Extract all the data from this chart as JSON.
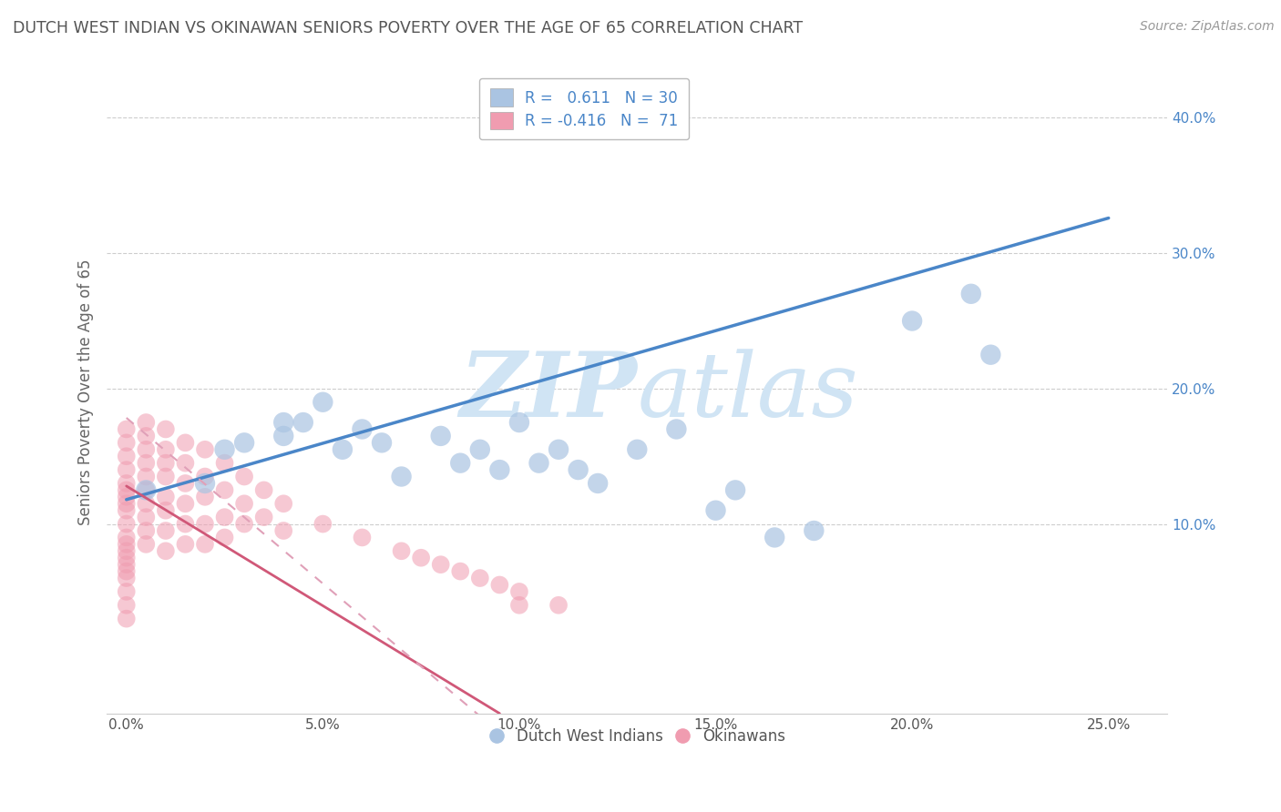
{
  "title": "DUTCH WEST INDIAN VS OKINAWAN SENIORS POVERTY OVER THE AGE OF 65 CORRELATION CHART",
  "source": "Source: ZipAtlas.com",
  "ylabel": "Seniors Poverty Over the Age of 65",
  "x_ticks": [
    0.0,
    0.05,
    0.1,
    0.15,
    0.2,
    0.25
  ],
  "x_tick_labels": [
    "0.0%",
    "5.0%",
    "10.0%",
    "15.0%",
    "20.0%",
    "25.0%"
  ],
  "y_ticks": [
    0.1,
    0.2,
    0.3,
    0.4
  ],
  "y_tick_labels": [
    "10.0%",
    "20.0%",
    "30.0%",
    "40.0%"
  ],
  "xlim": [
    -0.005,
    0.265
  ],
  "ylim": [
    -0.04,
    0.435
  ],
  "legend_label1": "Dutch West Indians",
  "legend_label2": "Okinawans",
  "blue_color": "#aac4e2",
  "pink_color": "#f09cb0",
  "blue_line_color": "#4a86c8",
  "pink_line_color": "#d05878",
  "pink_line_dash_color": "#e0a0b8",
  "watermark_color": "#d0e4f4",
  "background_color": "#ffffff",
  "grid_color": "#c8c8c8",
  "title_color": "#555555",
  "ytick_color": "#4a86c8",
  "xtick_color": "#555555",
  "blue_R": 0.611,
  "blue_N": 30,
  "pink_R": -0.416,
  "pink_N": 71,
  "blue_line_x0": 0.0,
  "blue_line_y0": 0.118,
  "blue_line_x1": 0.25,
  "blue_line_y1": 0.326,
  "pink_line_x0": 0.0,
  "pink_line_y0": 0.128,
  "pink_line_x1": 0.095,
  "pink_line_y1": -0.04,
  "blue_x": [
    0.005,
    0.02,
    0.025,
    0.03,
    0.04,
    0.04,
    0.045,
    0.05,
    0.055,
    0.06,
    0.065,
    0.07,
    0.08,
    0.085,
    0.09,
    0.095,
    0.1,
    0.105,
    0.11,
    0.115,
    0.12,
    0.13,
    0.14,
    0.15,
    0.155,
    0.165,
    0.175,
    0.2,
    0.215,
    0.22
  ],
  "blue_y": [
    0.125,
    0.13,
    0.155,
    0.16,
    0.165,
    0.175,
    0.175,
    0.19,
    0.155,
    0.17,
    0.16,
    0.135,
    0.165,
    0.145,
    0.155,
    0.14,
    0.175,
    0.145,
    0.155,
    0.14,
    0.13,
    0.155,
    0.17,
    0.11,
    0.125,
    0.09,
    0.095,
    0.25,
    0.27,
    0.225
  ],
  "pink_x": [
    0.0,
    0.0,
    0.0,
    0.0,
    0.0,
    0.0,
    0.0,
    0.0,
    0.0,
    0.0,
    0.0,
    0.0,
    0.0,
    0.0,
    0.0,
    0.0,
    0.0,
    0.0,
    0.0,
    0.0,
    0.005,
    0.005,
    0.005,
    0.005,
    0.005,
    0.005,
    0.005,
    0.005,
    0.005,
    0.005,
    0.01,
    0.01,
    0.01,
    0.01,
    0.01,
    0.01,
    0.01,
    0.01,
    0.015,
    0.015,
    0.015,
    0.015,
    0.015,
    0.015,
    0.02,
    0.02,
    0.02,
    0.02,
    0.02,
    0.025,
    0.025,
    0.025,
    0.025,
    0.03,
    0.03,
    0.03,
    0.035,
    0.035,
    0.04,
    0.04,
    0.05,
    0.06,
    0.07,
    0.075,
    0.08,
    0.085,
    0.09,
    0.095,
    0.1,
    0.1,
    0.11
  ],
  "pink_y": [
    0.17,
    0.16,
    0.15,
    0.14,
    0.13,
    0.125,
    0.12,
    0.115,
    0.11,
    0.1,
    0.09,
    0.085,
    0.08,
    0.075,
    0.07,
    0.065,
    0.06,
    0.05,
    0.04,
    0.03,
    0.175,
    0.165,
    0.155,
    0.145,
    0.135,
    0.125,
    0.115,
    0.105,
    0.095,
    0.085,
    0.17,
    0.155,
    0.145,
    0.135,
    0.12,
    0.11,
    0.095,
    0.08,
    0.16,
    0.145,
    0.13,
    0.115,
    0.1,
    0.085,
    0.155,
    0.135,
    0.12,
    0.1,
    0.085,
    0.145,
    0.125,
    0.105,
    0.09,
    0.135,
    0.115,
    0.1,
    0.125,
    0.105,
    0.115,
    0.095,
    0.1,
    0.09,
    0.08,
    0.075,
    0.07,
    0.065,
    0.06,
    0.055,
    0.05,
    0.04,
    0.04
  ]
}
